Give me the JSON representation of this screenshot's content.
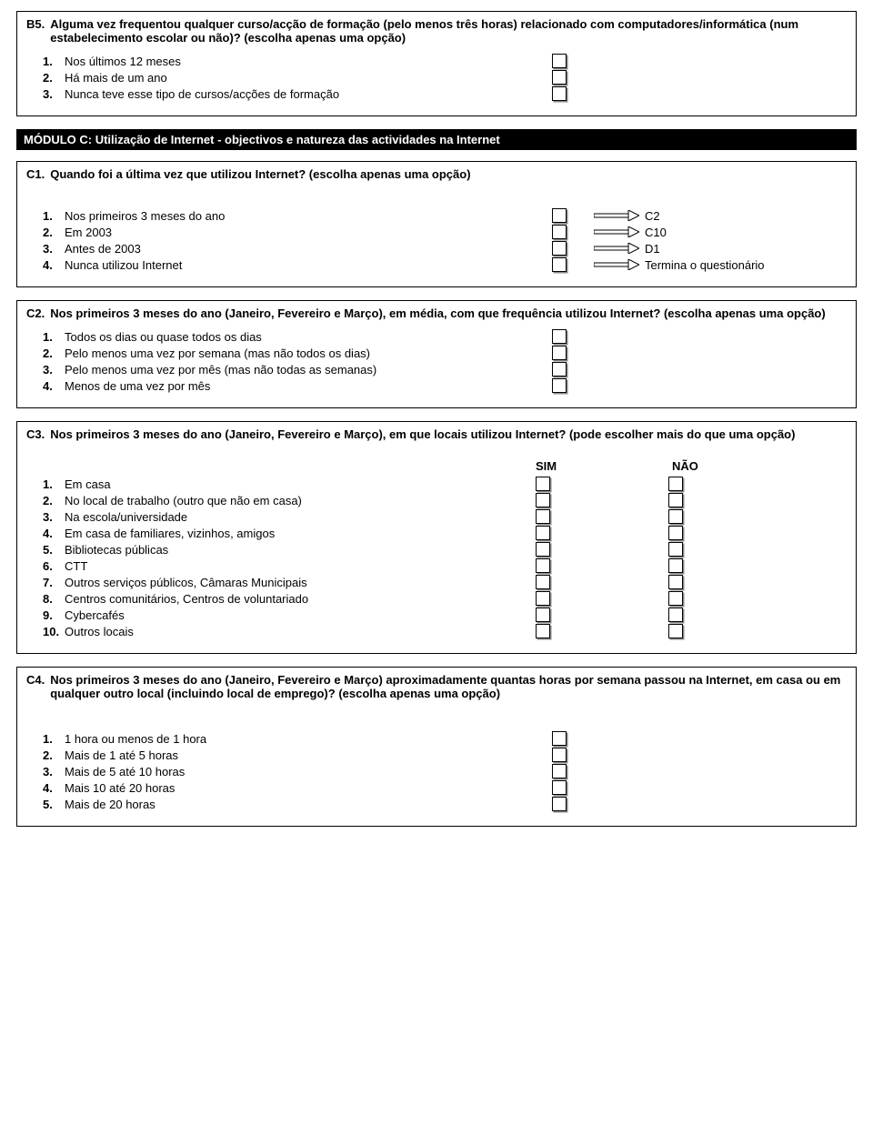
{
  "B5": {
    "num": "B5.",
    "text": "Alguma vez frequentou qualquer curso/acção de formação (pelo menos três horas) relacionado com computadores/informática (num estabelecimento escolar ou não)? (escolha apenas uma opção)",
    "opts": [
      {
        "n": "1.",
        "t": "Nos últimos 12 meses"
      },
      {
        "n": "2.",
        "t": "Há mais de um ano"
      },
      {
        "n": "3.",
        "t": "Nunca teve esse tipo de cursos/acções de formação"
      }
    ]
  },
  "moduleC": "MÓDULO C: Utilização de Internet - objectivos e natureza das actividades na Internet",
  "C1": {
    "num": "C1.",
    "text": "Quando foi a última vez que utilizou Internet? (escolha apenas uma opção)",
    "opts": [
      {
        "n": "1.",
        "t": "Nos primeiros 3 meses do ano",
        "dest": "C2"
      },
      {
        "n": "2.",
        "t": "Em 2003",
        "dest": "C10"
      },
      {
        "n": "3.",
        "t": "Antes de 2003",
        "dest": "D1"
      },
      {
        "n": "4.",
        "t": "Nunca utilizou Internet",
        "dest": "Termina o questionário"
      }
    ]
  },
  "C2": {
    "num": "C2.",
    "text": "Nos primeiros 3 meses do ano (Janeiro, Fevereiro e Março), em média, com que frequência utilizou Internet? (escolha apenas uma opção)",
    "opts": [
      {
        "n": "1.",
        "t": "Todos os dias ou quase todos os dias"
      },
      {
        "n": "2.",
        "t": "Pelo menos uma vez por semana (mas não todos os dias)"
      },
      {
        "n": "3.",
        "t": "Pelo menos uma vez por mês (mas não todas as semanas)"
      },
      {
        "n": "4.",
        "t": "Menos de uma vez por mês"
      }
    ]
  },
  "C3": {
    "num": "C3.",
    "text": "Nos primeiros 3 meses do ano (Janeiro, Fevereiro e Março), em que locais utilizou Internet? (pode escolher mais do que uma opção)",
    "sim": "SIM",
    "nao": "NÃO",
    "opts": [
      {
        "n": "1.",
        "t": "Em casa"
      },
      {
        "n": "2.",
        "t": "No local de trabalho (outro que não em casa)"
      },
      {
        "n": "3.",
        "t": "Na escola/universidade"
      },
      {
        "n": "4.",
        "t": "Em casa de familiares, vizinhos, amigos"
      },
      {
        "n": "5.",
        "t": "Bibliotecas públicas"
      },
      {
        "n": "6.",
        "t": "CTT"
      },
      {
        "n": "7.",
        "t": "Outros serviços públicos, Câmaras Municipais"
      },
      {
        "n": "8.",
        "t": "Centros comunitários, Centros de voluntariado"
      },
      {
        "n": "9.",
        "t": "Cybercafés"
      },
      {
        "n": "10.",
        "t": "Outros locais"
      }
    ]
  },
  "C4": {
    "num": "C4.",
    "text": "Nos primeiros 3 meses do ano (Janeiro, Fevereiro e Março) aproximadamente quantas horas por semana passou na Internet, em casa ou em qualquer outro local (incluindo local de emprego)? (escolha apenas uma opção)",
    "opts": [
      {
        "n": "1.",
        "t": "1 hora ou menos de 1 hora"
      },
      {
        "n": "2.",
        "t": "Mais de 1 até 5 horas"
      },
      {
        "n": "3.",
        "t": "Mais de 5 até 10 horas"
      },
      {
        "n": "4.",
        "t": "Mais 10 até 20 horas"
      },
      {
        "n": "5.",
        "t": "Mais de 20 horas"
      }
    ]
  }
}
